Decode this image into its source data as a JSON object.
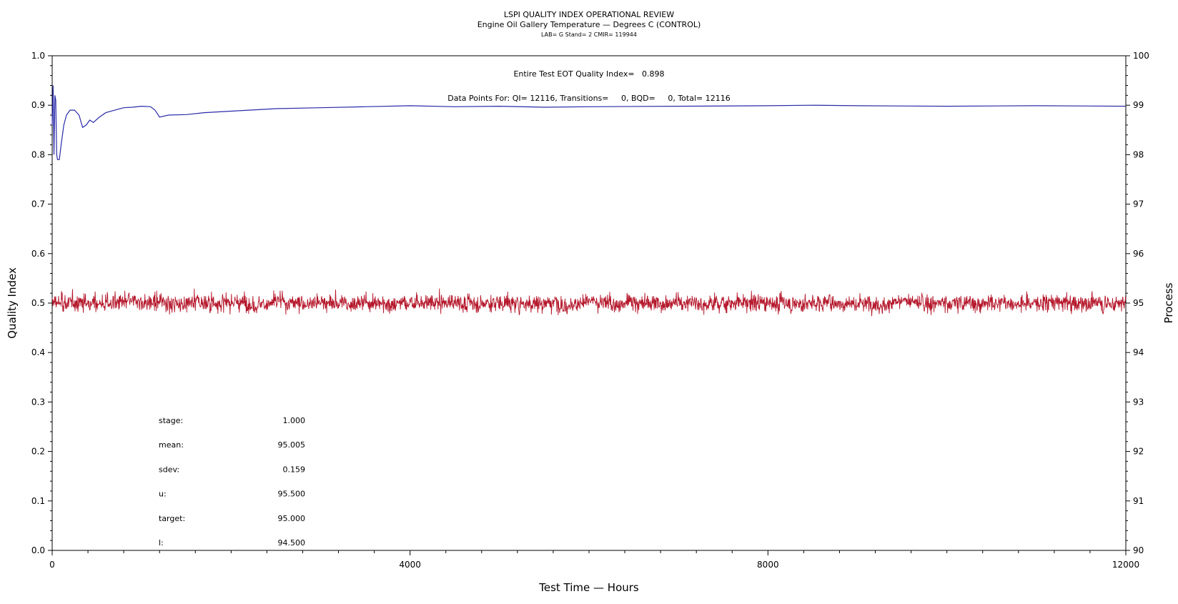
{
  "chart_data": {
    "type": "line",
    "title": "LSPI QUALITY INDEX OPERATIONAL REVIEW",
    "subtitle": "Engine Oil Gallery Temperature — Degrees C (CONTROL)",
    "subtitle2": "LAB= G Stand= 2 CMIR= 119944",
    "summary_line": "Entire Test EOT Quality Index=   0.898",
    "counts_line": "Data Points For: QI= 12116, Transitions=     0, BQD=     0, Total= 12116",
    "xlabel": "Test Time — Hours",
    "ylabel": "Quality Index",
    "y2label": "Process",
    "xlim": [
      0,
      12000
    ],
    "ylim": [
      0.0,
      1.0
    ],
    "y2lim": [
      90,
      100
    ],
    "x_ticks": [
      "0",
      "4000",
      "8000",
      "12000"
    ],
    "y_ticks": [
      "0.0",
      "0.1",
      "0.2",
      "0.3",
      "0.4",
      "0.5",
      "0.6",
      "0.7",
      "0.8",
      "0.9",
      "1.0"
    ],
    "y2_ticks": [
      "90",
      "91",
      "92",
      "93",
      "94",
      "95",
      "96",
      "97",
      "98",
      "99",
      "100"
    ],
    "grid": false,
    "series": [
      {
        "axis": "left",
        "color": "#2a2aa8",
        "x": [
          0,
          10,
          20,
          30,
          40,
          50,
          60,
          80,
          100,
          130,
          160,
          200,
          250,
          300,
          340,
          380,
          420,
          460,
          520,
          600,
          700,
          800,
          900,
          1000,
          1100,
          1150,
          1200,
          1300,
          1500,
          1700,
          2000,
          2500,
          3000,
          3500,
          4000,
          4500,
          5000,
          5500,
          6000,
          7000,
          8000,
          8500,
          9000,
          10000,
          11000,
          12000
        ],
        "values": [
          0.86,
          0.94,
          0.8,
          0.92,
          0.91,
          0.8,
          0.79,
          0.79,
          0.82,
          0.86,
          0.88,
          0.89,
          0.89,
          0.88,
          0.855,
          0.86,
          0.87,
          0.865,
          0.875,
          0.885,
          0.89,
          0.895,
          0.896,
          0.898,
          0.897,
          0.89,
          0.876,
          0.88,
          0.881,
          0.885,
          0.888,
          0.893,
          0.895,
          0.897,
          0.899,
          0.897,
          0.898,
          0.896,
          0.897,
          0.898,
          0.899,
          0.9,
          0.899,
          0.898,
          0.899,
          0.898
        ]
      },
      {
        "axis": "right",
        "color": "#b5172b",
        "note": "noisy process trace around the mean",
        "x": [
          0,
          12000
        ],
        "mean": 95.005,
        "sdev": 0.159
      }
    ],
    "stats": [
      {
        "label": "stage:",
        "value": "1.000"
      },
      {
        "label": "mean:",
        "value": "95.005"
      },
      {
        "label": "sdev:",
        "value": "0.159"
      },
      {
        "label": "u:",
        "value": "95.500"
      },
      {
        "label": "target:",
        "value": "95.000"
      },
      {
        "label": "l:",
        "value": "94.500"
      }
    ]
  }
}
